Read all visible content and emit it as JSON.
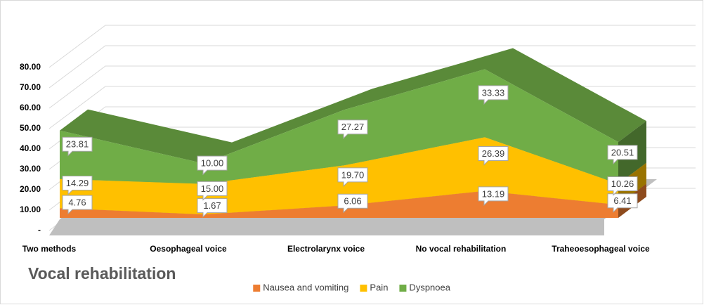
{
  "chart_data": {
    "type": "area3d",
    "title": "Vocal rehabilitation",
    "categories": [
      "Two methods",
      "Oesophageal voice",
      "Electrolarynx voice",
      "No vocal rehabilitation",
      "Traheoesophageal voice"
    ],
    "series": [
      {
        "name": "Nausea and vomiting",
        "color": "#ed7d31",
        "values": [
          4.76,
          1.67,
          6.06,
          13.19,
          6.41
        ],
        "value_labels": [
          "4.76",
          "1.67",
          "6.06",
          "13.19",
          "6.41"
        ]
      },
      {
        "name": "Pain",
        "color": "#ffc000",
        "values": [
          14.29,
          15.0,
          19.7,
          26.39,
          10.26
        ],
        "value_labels": [
          "14.29",
          "15.00",
          "19.70",
          "26.39",
          "10.26"
        ]
      },
      {
        "name": "Dyspnoea",
        "color": "#70ad47",
        "values": [
          23.81,
          10.0,
          27.27,
          33.33,
          20.51
        ],
        "value_labels": [
          "23.81",
          "10.00",
          "27.27",
          "33.33",
          "20.51"
        ]
      }
    ],
    "stacked": true,
    "ylim": [
      0,
      80
    ],
    "yticks": [
      {
        "value": 0,
        "label": "-"
      },
      {
        "value": 10,
        "label": "10.00"
      },
      {
        "value": 20,
        "label": "20.00"
      },
      {
        "value": 30,
        "label": "30.00"
      },
      {
        "value": 40,
        "label": "40.00"
      },
      {
        "value": 50,
        "label": "50.00"
      },
      {
        "value": 60,
        "label": "60.00"
      },
      {
        "value": 70,
        "label": "70.00"
      },
      {
        "value": 80,
        "label": "80.00"
      }
    ],
    "grid": true,
    "legend": "bottom"
  }
}
